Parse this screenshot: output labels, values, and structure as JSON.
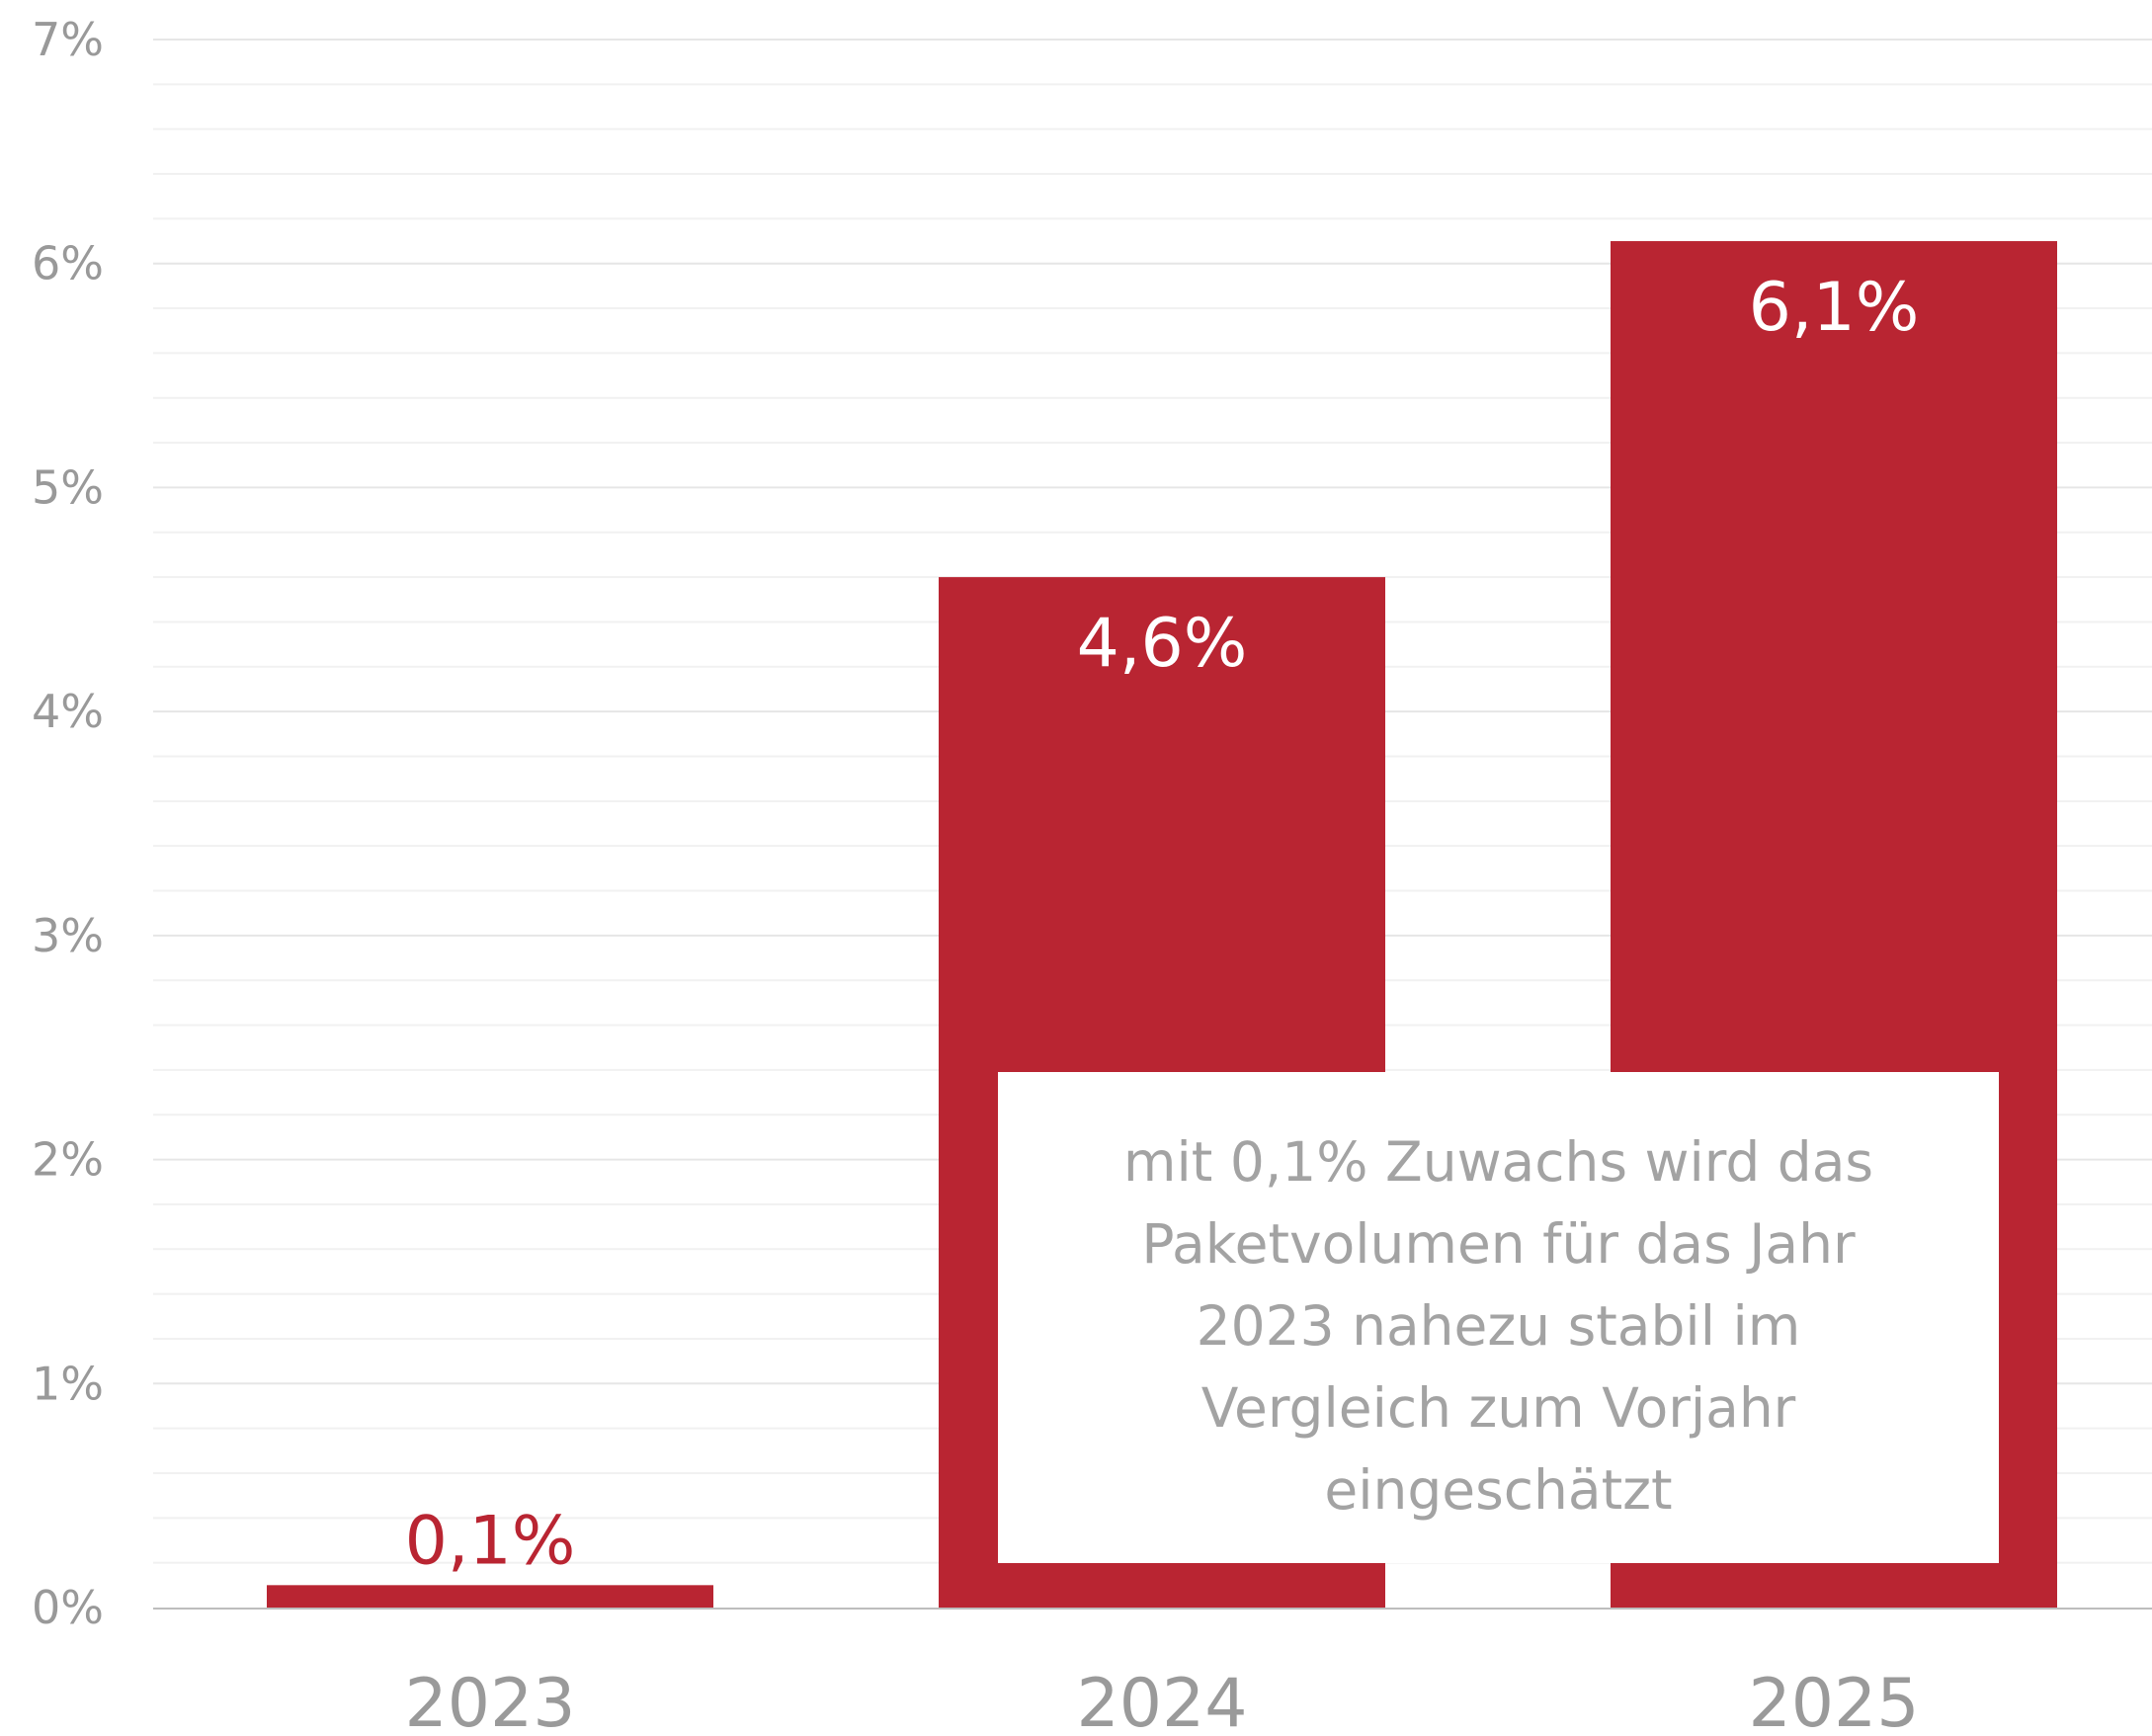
{
  "chart_data": {
    "type": "bar",
    "categories": [
      "2023",
      "2024",
      "2025"
    ],
    "values": [
      0.1,
      4.6,
      6.1
    ],
    "data_labels": [
      "0,1%",
      "4,6%",
      "6,1%"
    ],
    "title": "",
    "xlabel": "",
    "ylabel": "",
    "ylim": [
      0,
      7
    ],
    "yticks": [
      0,
      1,
      2,
      3,
      4,
      5,
      6,
      7
    ],
    "ytick_labels": [
      "0%",
      "1%",
      "2%",
      "3%",
      "4%",
      "5%",
      "6%",
      "7%"
    ],
    "grid": true,
    "legend": "none",
    "bar_color": "#b92532",
    "label_inside_color": "#ffffff",
    "label_outside_color": "#b92532",
    "annotation": "mit 0,1% Zuwachs wird das\nPaketvolumen für das Jahr\n2023 nahezu stabil im\nVergleich zum Vorjahr\neingeschätzt"
  }
}
